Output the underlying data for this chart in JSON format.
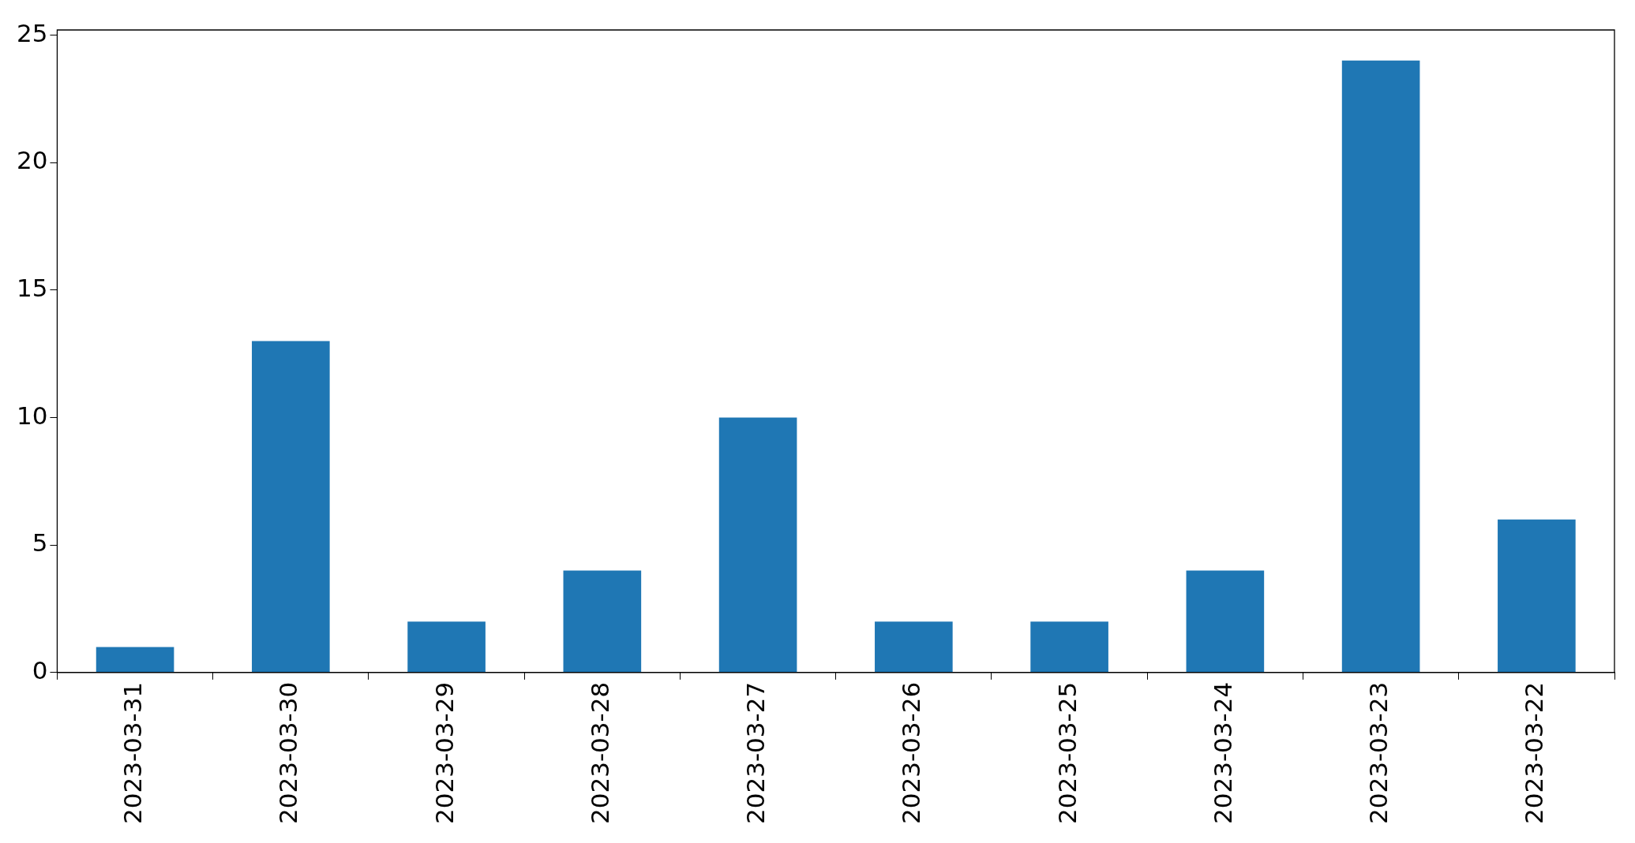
{
  "chart_data": {
    "type": "bar",
    "categories": [
      "2023-03-31",
      "2023-03-30",
      "2023-03-29",
      "2023-03-28",
      "2023-03-27",
      "2023-03-26",
      "2023-03-25",
      "2023-03-24",
      "2023-03-23",
      "2023-03-22"
    ],
    "values": [
      1,
      13,
      2,
      4,
      10,
      2,
      2,
      4,
      24,
      6
    ],
    "color": "#1f77b4",
    "ylim": [
      0,
      25.2
    ],
    "yticks": [
      0,
      5,
      10,
      15,
      20,
      25
    ],
    "grid": false,
    "legend": false
  }
}
